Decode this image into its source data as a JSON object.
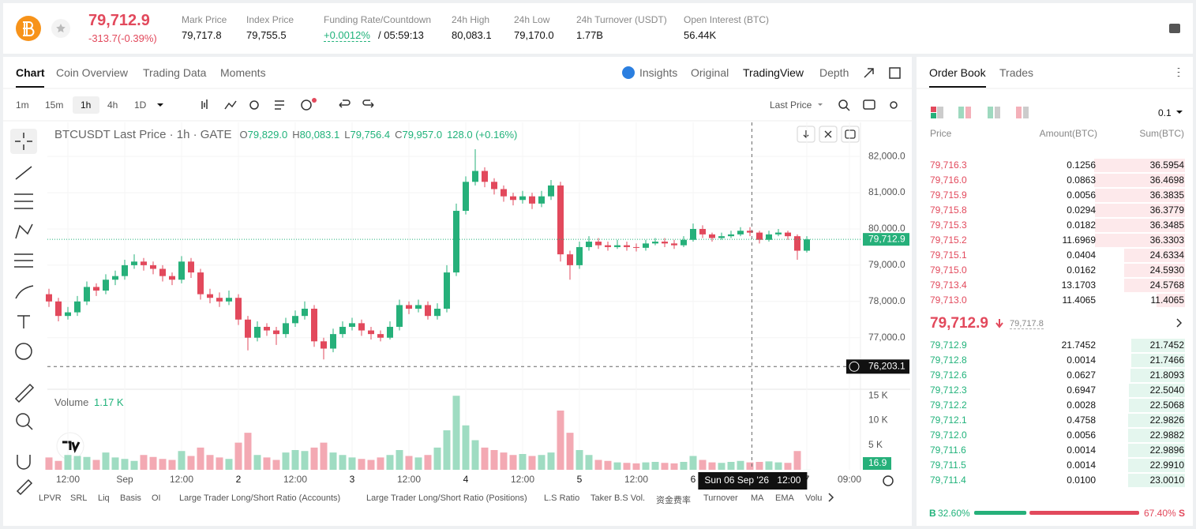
{
  "header": {
    "price": "79,712.9",
    "change": "-313.7(-0.39%)",
    "stats": [
      {
        "label": "Mark Price",
        "value": "79,717.8"
      },
      {
        "label": "Index Price",
        "value": "79,755.5"
      },
      {
        "label": "Funding Rate/Countdown",
        "value": "+0.0012%",
        "extra": "/ 05:59:13"
      },
      {
        "label": "24h High",
        "value": "80,083.1"
      },
      {
        "label": "24h Low",
        "value": "79,170.0"
      },
      {
        "label": "24h Turnover (USDT)",
        "value": "1.77B"
      },
      {
        "label": "Open Interest (BTC)",
        "value": "56.44K"
      }
    ]
  },
  "chart_tabs": [
    "Chart",
    "Coin Overview",
    "Trading Data",
    "Moments"
  ],
  "view_tabs": [
    "Insights",
    "Original",
    "TradingView",
    "Depth"
  ],
  "intervals": [
    "1m",
    "15m",
    "1h",
    "4h",
    "1D"
  ],
  "price_type": "Last Price",
  "chart_data": {
    "type": "candlestick",
    "title": "BTCUSDT Last Price · 1h · GATE",
    "ohlc_legend": [
      {
        "label": "O",
        "value": "79,829.0"
      },
      {
        "label": "H",
        "value": "80,083.1"
      },
      {
        "label": "L",
        "value": "79,756.4"
      },
      {
        "label": "C",
        "value": "79,957.0"
      }
    ],
    "legend_change": "128.0 (+0.16%)",
    "up_color": "#26b07a",
    "down_color": "#e2495c",
    "candles": [
      [
        78200,
        78350,
        77850,
        78000
      ],
      [
        78000,
        78100,
        77450,
        77600
      ],
      [
        77600,
        77850,
        77500,
        77700
      ],
      [
        77700,
        78150,
        77600,
        78000
      ],
      [
        78000,
        78550,
        77900,
        78400
      ],
      [
        78400,
        78500,
        78150,
        78300
      ],
      [
        78300,
        78750,
        78200,
        78600
      ],
      [
        78600,
        78850,
        78450,
        78700
      ],
      [
        78700,
        79150,
        78600,
        79000
      ],
      [
        79000,
        79300,
        78900,
        79100
      ],
      [
        79100,
        79200,
        78850,
        79000
      ],
      [
        79000,
        79100,
        78750,
        78900
      ],
      [
        78900,
        79000,
        78550,
        78700
      ],
      [
        78700,
        78800,
        78450,
        78600
      ],
      [
        78600,
        79250,
        78500,
        79100
      ],
      [
        79100,
        79200,
        78650,
        78800
      ],
      [
        78800,
        78900,
        78050,
        78200
      ],
      [
        78200,
        78350,
        77950,
        78100
      ],
      [
        78100,
        78250,
        77850,
        78000
      ],
      [
        78000,
        78300,
        77900,
        78100
      ],
      [
        78100,
        78200,
        77350,
        77500
      ],
      [
        77500,
        77600,
        76650,
        77000
      ],
      [
        77000,
        77450,
        76900,
        77300
      ],
      [
        77300,
        77400,
        77050,
        77200
      ],
      [
        77200,
        77300,
        76800,
        77100
      ],
      [
        77100,
        77550,
        77000,
        77400
      ],
      [
        77400,
        77750,
        77300,
        77600
      ],
      [
        77600,
        78000,
        77500,
        77800
      ],
      [
        77800,
        77900,
        76750,
        76900
      ],
      [
        76900,
        77000,
        76400,
        76700
      ],
      [
        76700,
        77250,
        76600,
        77100
      ],
      [
        77100,
        77450,
        77000,
        77300
      ],
      [
        77300,
        77550,
        77200,
        77400
      ],
      [
        77400,
        77500,
        77050,
        77200
      ],
      [
        77200,
        77300,
        76950,
        77100
      ],
      [
        77100,
        77200,
        76900,
        77000
      ],
      [
        77000,
        77450,
        76950,
        77300
      ],
      [
        77300,
        78050,
        77200,
        77900
      ],
      [
        77900,
        78000,
        77650,
        77800
      ],
      [
        77800,
        78050,
        77700,
        77900
      ],
      [
        77900,
        78000,
        77500,
        77600
      ],
      [
        77600,
        77950,
        77500,
        77800
      ],
      [
        77800,
        79000,
        77700,
        78800
      ],
      [
        78800,
        80700,
        78700,
        80500
      ],
      [
        80500,
        81450,
        80400,
        81300
      ],
      [
        81300,
        82200,
        81200,
        81600
      ],
      [
        81600,
        81700,
        81150,
        81300
      ],
      [
        81300,
        81400,
        80950,
        81100
      ],
      [
        81100,
        81200,
        80750,
        80900
      ],
      [
        80900,
        81000,
        80650,
        80800
      ],
      [
        80800,
        81050,
        80700,
        80900
      ],
      [
        80900,
        81000,
        80550,
        80700
      ],
      [
        80700,
        81050,
        80600,
        80900
      ],
      [
        80900,
        81350,
        80800,
        81200
      ],
      [
        81200,
        81300,
        79100,
        79300
      ],
      [
        79300,
        79400,
        78600,
        79000
      ],
      [
        79000,
        79650,
        78900,
        79500
      ],
      [
        79500,
        79800,
        79400,
        79650
      ],
      [
        79650,
        79750,
        79450,
        79550
      ],
      [
        79550,
        79650,
        79400,
        79500
      ],
      [
        79500,
        79700,
        79450,
        79550
      ],
      [
        79550,
        79650,
        79400,
        79500
      ],
      [
        79500,
        79600,
        79380,
        79480
      ],
      [
        79480,
        79700,
        79400,
        79600
      ],
      [
        79600,
        79750,
        79550,
        79650
      ],
      [
        79650,
        79750,
        79500,
        79600
      ],
      [
        79600,
        79700,
        79450,
        79550
      ],
      [
        79550,
        79800,
        79500,
        79700
      ],
      [
        79700,
        80150,
        79650,
        80000
      ],
      [
        80000,
        80100,
        79750,
        79850
      ],
      [
        79850,
        79900,
        79650,
        79750
      ],
      [
        79750,
        79900,
        79700,
        79800
      ],
      [
        79800,
        79950,
        79750,
        79850
      ],
      [
        79850,
        80050,
        79800,
        79950
      ],
      [
        79950,
        80050,
        79800,
        79900
      ],
      [
        79900,
        79950,
        79600,
        79700
      ],
      [
        79700,
        79950,
        79650,
        79850
      ],
      [
        79850,
        80000,
        79800,
        79900
      ],
      [
        79900,
        79950,
        79700,
        79800
      ],
      [
        79800,
        79850,
        79150,
        79400
      ],
      [
        79400,
        79800,
        79350,
        79712.9
      ]
    ],
    "ylim": [
      75600,
      82940
    ],
    "yticks": [
      {
        "value": 82000,
        "label": "82,000.0"
      },
      {
        "value": 81000,
        "label": "81,000.0"
      },
      {
        "value": 80000,
        "label": "80,000.0"
      },
      {
        "value": 79000,
        "label": "79,000.0"
      },
      {
        "value": 78000,
        "label": "78,000.0"
      },
      {
        "value": 77000,
        "label": "77,000.0"
      }
    ],
    "xlim": [
      -0.5,
      87
    ],
    "xticks": [
      {
        "value": 2,
        "label": "12:00"
      },
      {
        "value": 8,
        "label": "Sep"
      },
      {
        "value": 14,
        "label": "12:00"
      },
      {
        "value": 20,
        "label": "2"
      },
      {
        "value": 26,
        "label": "12:00"
      },
      {
        "value": 32,
        "label": "3"
      },
      {
        "value": 38,
        "label": "12:00"
      },
      {
        "value": 44,
        "label": "4"
      },
      {
        "value": 50,
        "label": "12:00"
      },
      {
        "value": 56,
        "label": "5"
      },
      {
        "value": 62,
        "label": "12:00"
      },
      {
        "value": 68,
        "label": "6"
      },
      {
        "value": 80,
        "label": "7"
      },
      {
        "value": 84.5,
        "label": "09:00"
      }
    ],
    "last_price": {
      "value": 79712.9,
      "label": "79,712.9"
    },
    "crosshair": {
      "value": 76203.1,
      "label": "76,203.1",
      "x": 74.2,
      "date_label": "Sun 06 Sep '26",
      "time_label": "12:00"
    },
    "volume": {
      "title": "Volume",
      "value": "1.17 K",
      "ylim": [
        0,
        16000
      ],
      "yticks": [
        {
          "value": 15000,
          "label": "15 K"
        },
        {
          "value": 10000,
          "label": "10 K"
        },
        {
          "value": 5000,
          "label": "5 K"
        }
      ],
      "values": [
        2500,
        1800,
        3000,
        2800,
        2600,
        2000,
        3500,
        2500,
        2200,
        1800,
        3000,
        2600,
        2200,
        2000,
        3800,
        2800,
        4500,
        3000,
        2500,
        2200,
        5500,
        7500,
        3000,
        2500,
        2000,
        3500,
        4000,
        3800,
        4500,
        5500,
        3500,
        3000,
        2500,
        2200,
        2000,
        2500,
        3000,
        4000,
        2800,
        2500,
        3000,
        4500,
        8000,
        15000,
        9000,
        6000,
        4500,
        4000,
        3500,
        3000,
        3200,
        2800,
        3000,
        3500,
        12000,
        7500,
        4000,
        3000,
        2000,
        1800,
        1500,
        1400,
        1300,
        1500,
        1600,
        1400,
        1300,
        1600,
        2800,
        2000,
        1500,
        1400,
        1600,
        1800,
        1500,
        1600,
        1700,
        1500,
        1400,
        3800,
        16.9
      ]
    }
  },
  "indicators": [
    "LPVR",
    "SRL",
    "Liq",
    "Basis",
    "OI",
    "Large Trader Long/Short Ratio (Accounts)",
    "Large Trader Long/Short Ratio (Positions)",
    "L.S Ratio",
    "Taker B.S Vol.",
    "资金费率",
    "Turnover",
    "MA",
    "EMA",
    "Volu"
  ],
  "order_book": {
    "tabs": [
      "Order Book",
      "Trades"
    ],
    "precision": "0.1",
    "columns": [
      "Price",
      "Amount(BTC)",
      "Sum(BTC)"
    ],
    "asks": [
      {
        "price": "79,716.3",
        "amount": "0.1256",
        "sum": "36.5954"
      },
      {
        "price": "79,716.0",
        "amount": "0.0863",
        "sum": "36.4698"
      },
      {
        "price": "79,715.9",
        "amount": "0.0056",
        "sum": "36.3835"
      },
      {
        "price": "79,715.8",
        "amount": "0.0294",
        "sum": "36.3779"
      },
      {
        "price": "79,715.3",
        "amount": "0.0182",
        "sum": "36.3485"
      },
      {
        "price": "79,715.2",
        "amount": "11.6969",
        "sum": "36.3303"
      },
      {
        "price": "79,715.1",
        "amount": "0.0404",
        "sum": "24.6334"
      },
      {
        "price": "79,715.0",
        "amount": "0.0162",
        "sum": "24.5930"
      },
      {
        "price": "79,713.4",
        "amount": "13.1703",
        "sum": "24.5768"
      },
      {
        "price": "79,713.0",
        "amount": "11.4065",
        "sum": "11.4065"
      }
    ],
    "mid_price": "79,712.9",
    "mark_price": "79,717.8",
    "bids": [
      {
        "price": "79,712.9",
        "amount": "21.7452",
        "sum": "21.7452"
      },
      {
        "price": "79,712.8",
        "amount": "0.0014",
        "sum": "21.7466"
      },
      {
        "price": "79,712.6",
        "amount": "0.0627",
        "sum": "21.8093"
      },
      {
        "price": "79,712.3",
        "amount": "0.6947",
        "sum": "22.5040"
      },
      {
        "price": "79,712.2",
        "amount": "0.0028",
        "sum": "22.5068"
      },
      {
        "price": "79,712.1",
        "amount": "0.4758",
        "sum": "22.9826"
      },
      {
        "price": "79,712.0",
        "amount": "0.0056",
        "sum": "22.9882"
      },
      {
        "price": "79,711.6",
        "amount": "0.0014",
        "sum": "22.9896"
      },
      {
        "price": "79,711.5",
        "amount": "0.0014",
        "sum": "22.9910"
      },
      {
        "price": "79,711.4",
        "amount": "0.0100",
        "sum": "23.0010"
      }
    ],
    "buy_label": "B",
    "buy_ratio": "32.60%",
    "sell_ratio": "67.40%",
    "sell_label": "S"
  }
}
